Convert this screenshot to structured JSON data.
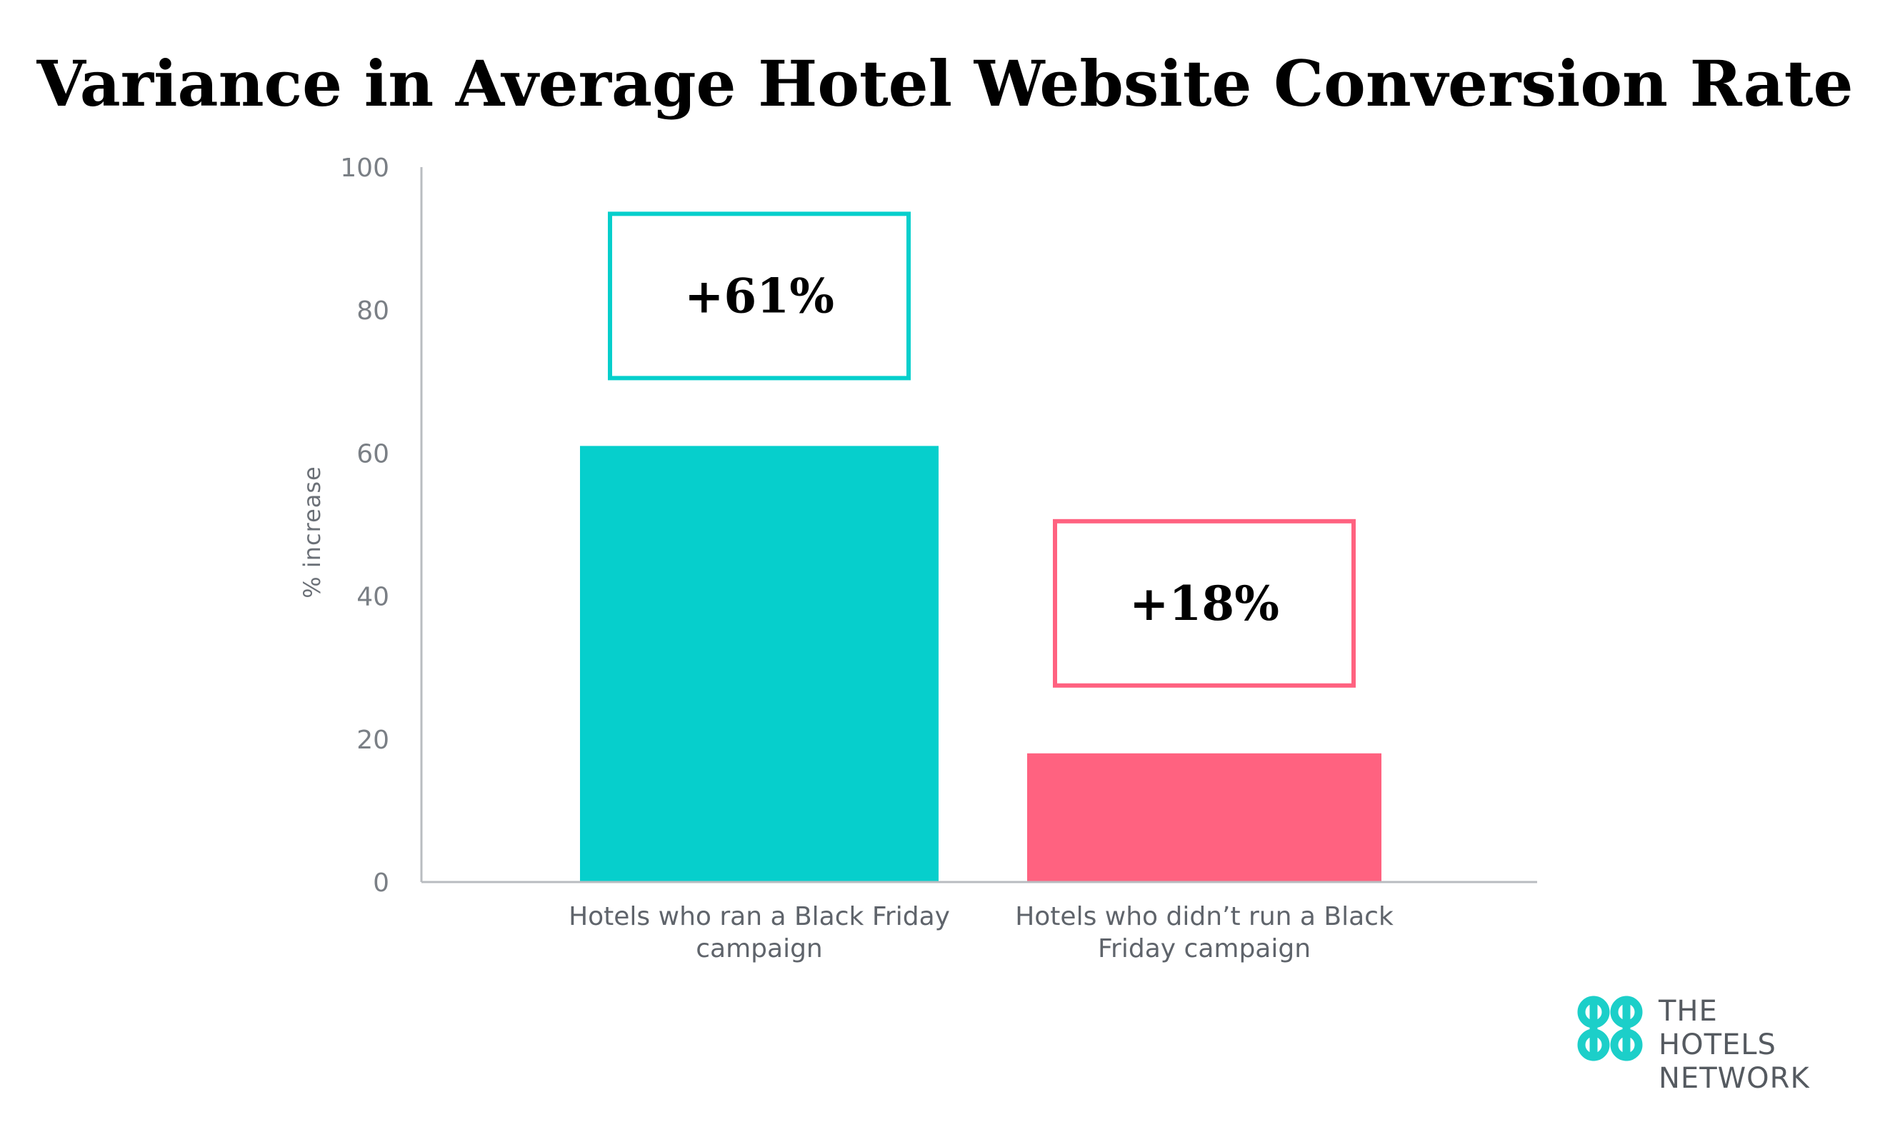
{
  "chart_data": {
    "type": "bar",
    "title": "Variance in Average Hotel Website Conversion Rate",
    "xlabel": "",
    "ylabel": "% increase",
    "ylim": [
      0,
      100
    ],
    "yticks": [
      "0",
      "20",
      "40",
      "60",
      "80",
      "100"
    ],
    "categories": [
      [
        "Hotels who ran a Black Friday",
        "campaign"
      ],
      [
        "Hotels who didn’t run a Black",
        "Friday campaign"
      ]
    ],
    "values": [
      61,
      18
    ],
    "data_labels": [
      "+61%",
      "+18%"
    ],
    "colors": [
      "#06cfcc",
      "#ff6280"
    ],
    "grid": false,
    "legend": "none"
  },
  "logo": {
    "icon": "hotels-network-logo-icon",
    "lines": [
      "THE",
      "HOTELS",
      "NETWORK"
    ],
    "color": "#1ccfc9"
  }
}
